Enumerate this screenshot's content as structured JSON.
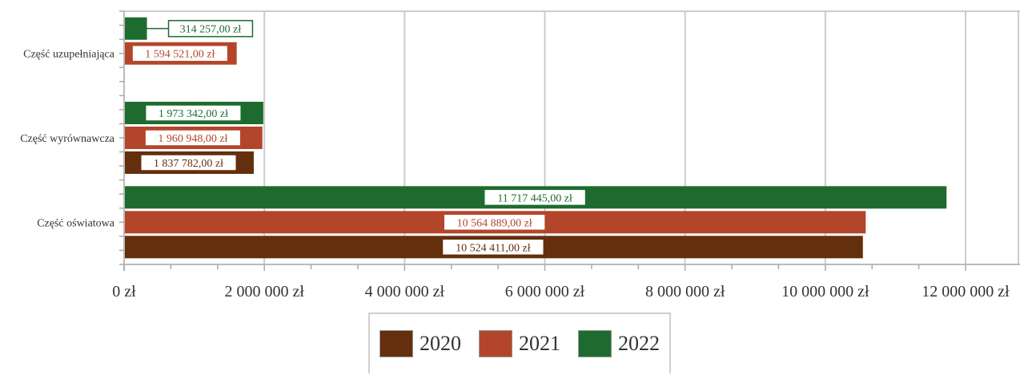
{
  "chart_data": {
    "type": "bar",
    "orientation": "horizontal",
    "categories": [
      "Część uzupełniająca",
      "Część wyrównawcza",
      "Część oświatowa"
    ],
    "series": [
      {
        "name": "2020",
        "color": "#642f0d",
        "values": [
          null,
          1837782,
          10524411
        ],
        "labels": [
          "",
          "1 837 782,00 zł",
          "10 524 411,00 zł"
        ]
      },
      {
        "name": "2021",
        "color": "#b3462a",
        "values": [
          1594521,
          1960948,
          10564889
        ],
        "labels": [
          "1 594 521,00 zł",
          "1 960 948,00 zł",
          "10 564 889,00 zł"
        ]
      },
      {
        "name": "2022",
        "color": "#1e6b30",
        "values": [
          314257,
          1973342,
          11717445
        ],
        "labels": [
          "314 257,00 zł",
          "1 973 342,00 zł",
          "11 717 445,00 zł"
        ]
      }
    ],
    "xlim": [
      0,
      12000000
    ],
    "xticks": [
      0,
      2000000,
      4000000,
      6000000,
      8000000,
      10000000,
      12000000
    ],
    "xtick_labels": [
      "0 zł",
      "2 000 000 zł",
      "4 000 000 zł",
      "6 000 000 zł",
      "8 000 000 zł",
      "10 000 000 zł",
      "12 000 000 zł"
    ],
    "grid": true,
    "legend_position": "bottom",
    "title": "",
    "xlabel": "",
    "ylabel": ""
  }
}
